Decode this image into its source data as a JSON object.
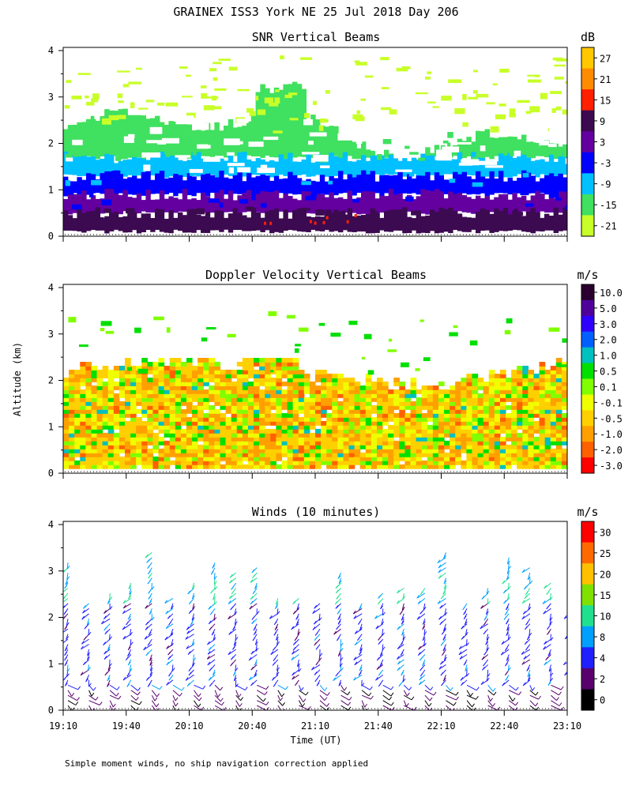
{
  "figure": {
    "title": "GRAINEX ISS3 York NE  25 Jul 2018 Day 206",
    "ylabel": "Altitude (km)",
    "xlabel": "Time (UT)",
    "footnote": "Simple moment winds, no ship navigation correction applied"
  },
  "chart_data": [
    {
      "type": "heatmap",
      "title": "SNR Vertical Beams",
      "unit_label": "dB",
      "xlim": [
        "19:10",
        "23:10"
      ],
      "ylim": [
        0,
        4
      ],
      "y_ticks": [
        "0",
        "1",
        "2",
        "3",
        "4"
      ],
      "colorbar_labels": [
        "27",
        "21",
        "15",
        "9",
        "3",
        "-3",
        "-9",
        "-15",
        "-21"
      ],
      "colorbar_colors": [
        "#ffc800",
        "#ff8c00",
        "#ff2000",
        "#3c0a50",
        "#6400a0",
        "#0000ff",
        "#00c0ff",
        "#40e060",
        "#c8ff28"
      ],
      "layers": [
        {
          "alt_km": [
            0.1,
            0.5
          ],
          "value_db": 9
        },
        {
          "alt_km": [
            0.5,
            0.9
          ],
          "value_db": 3
        },
        {
          "alt_km": [
            0.9,
            1.3
          ],
          "value_db": -3
        },
        {
          "alt_km": [
            1.3,
            1.7
          ],
          "value_db": -9
        },
        {
          "alt_km": [
            1.7,
            2.1
          ],
          "value_db": -15
        },
        {
          "alt_km": [
            2.1,
            2.6
          ],
          "value_db": -21
        }
      ]
    },
    {
      "type": "heatmap",
      "title": "Doppler Velocity Vertical Beams",
      "unit_label": "m/s",
      "xlim": [
        "19:10",
        "23:10"
      ],
      "ylim": [
        0,
        4
      ],
      "y_ticks": [
        "0",
        "1",
        "2",
        "3",
        "4"
      ],
      "colorbar_labels": [
        "10.0",
        "5.0",
        "3.0",
        "2.0",
        "1.0",
        "0.5",
        "0.1",
        "-0.1",
        "-0.5",
        "-1.0",
        "-2.0",
        "-3.0"
      ],
      "colorbar_colors": [
        "#2a0030",
        "#50009a",
        "#3000ff",
        "#0060ff",
        "#00c0c0",
        "#00e000",
        "#80ff00",
        "#f0ff00",
        "#ffd000",
        "#ffa000",
        "#ff6000",
        "#ff0000"
      ],
      "dominant_range_ms": [
        -1.0,
        0.5
      ],
      "max_echo_alt_km": 2.3
    },
    {
      "type": "scatter",
      "title": "Winds (10 minutes)",
      "unit_label": "m/s",
      "xlim": [
        "19:10",
        "23:10"
      ],
      "ylim": [
        0,
        4
      ],
      "y_ticks": [
        "0",
        "1",
        "2",
        "3",
        "4"
      ],
      "x_ticks": [
        "19:10",
        "19:40",
        "20:10",
        "20:40",
        "21:10",
        "21:40",
        "22:10",
        "22:40",
        "23:10"
      ],
      "colorbar_labels": [
        "30",
        "25",
        "20",
        "15",
        "10",
        "8",
        "4",
        "2",
        "0"
      ],
      "colorbar_colors": [
        "#ff0000",
        "#ff6a00",
        "#ffc000",
        "#80e000",
        "#20e090",
        "#00a0ff",
        "#2020ff",
        "#5a006e",
        "#000000"
      ],
      "profile_interval_min": 10,
      "typical_speed_ms": [
        4,
        10
      ],
      "max_alt_km": 3.6
    }
  ]
}
